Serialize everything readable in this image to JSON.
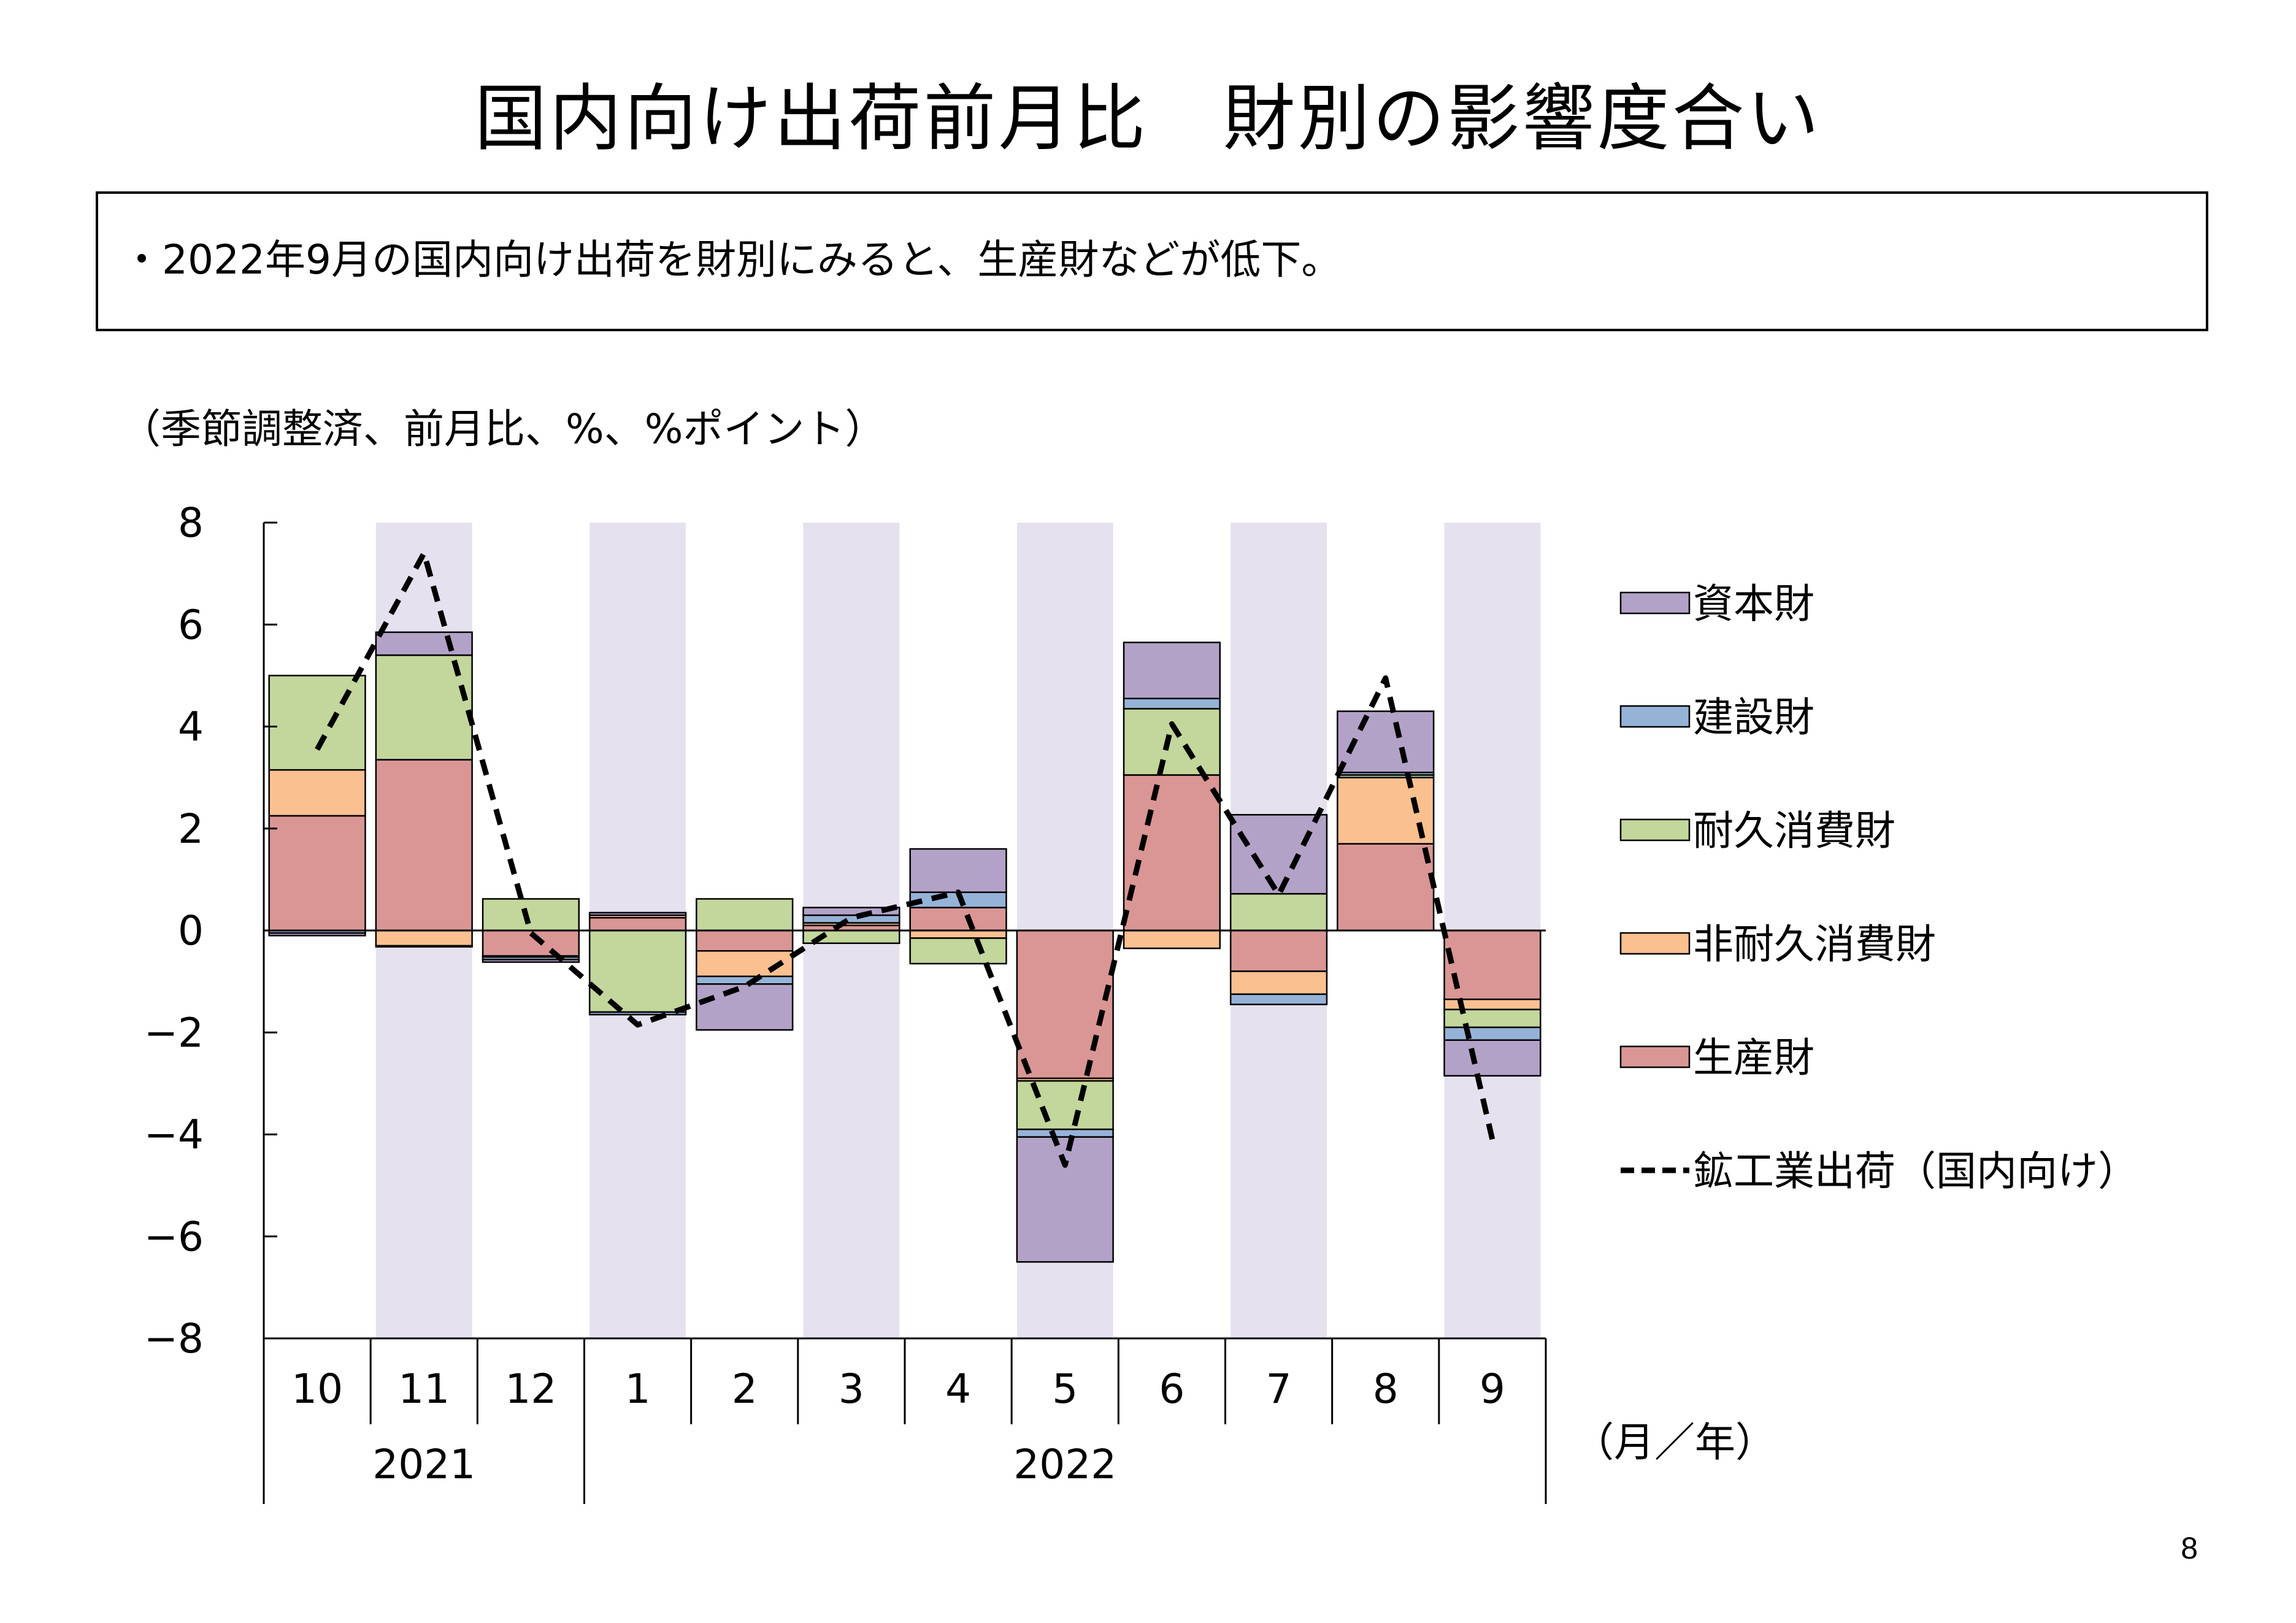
{
  "title": "国内向け出荷前月比　財別の影響度合い",
  "summary": "・2022年9月の国内向け出荷を財別にみると、生産財などが低下。",
  "unit_note": "（季節調整済、前月比、%、%ポイント）",
  "page_number": "8",
  "chart_data": {
    "type": "bar",
    "stacked": true,
    "categories": [
      "10",
      "11",
      "12",
      "1",
      "2",
      "3",
      "4",
      "5",
      "6",
      "7",
      "8",
      "9"
    ],
    "year_groups": [
      {
        "label": "2021",
        "start": 0,
        "end": 2
      },
      {
        "label": "2022",
        "start": 3,
        "end": 11
      }
    ],
    "xlabel": "（月／年）",
    "ylim": [
      -8,
      8
    ],
    "yticks": [
      "8",
      "6",
      "4",
      "2",
      "0",
      "−2",
      "−4",
      "−6",
      "−8"
    ],
    "ytick_values": [
      8,
      6,
      4,
      2,
      0,
      -2,
      -4,
      -6,
      -8
    ],
    "shaded_categories": [
      1,
      3,
      5,
      7,
      9,
      11
    ],
    "shade_color": "#e6e1ee",
    "series": [
      {
        "name": "生産財",
        "color": "#d99694",
        "values": [
          2.25,
          3.35,
          -0.5,
          0.25,
          -0.4,
          0.1,
          0.45,
          -2.9,
          3.05,
          -0.8,
          1.7,
          -1.35
        ]
      },
      {
        "name": "非耐久消費財",
        "color": "#fac090",
        "values": [
          0.9,
          -0.3,
          -0.02,
          0.05,
          -0.5,
          0.05,
          -0.15,
          -0.05,
          -0.35,
          -0.45,
          1.3,
          -0.2
        ]
      },
      {
        "name": "耐久消費財",
        "color": "#c3d69b",
        "values": [
          1.85,
          2.05,
          0.62,
          -1.6,
          0.62,
          -0.25,
          -0.5,
          -0.95,
          1.3,
          0.72,
          0.05,
          -0.35
        ]
      },
      {
        "name": "建設財",
        "color": "#95b3d7",
        "values": [
          -0.05,
          -0.02,
          -0.05,
          -0.05,
          -0.15,
          0.15,
          0.3,
          -0.15,
          0.2,
          -0.2,
          0.05,
          -0.25
        ]
      },
      {
        "name": "資本財",
        "color": "#b3a2c7",
        "values": [
          -0.05,
          0.45,
          -0.05,
          0.05,
          -0.9,
          0.15,
          0.85,
          -2.45,
          1.1,
          1.55,
          1.2,
          -0.7
        ]
      }
    ],
    "line_series": {
      "name": "鉱工業出荷（国内向け）",
      "color": "#000000",
      "values": [
        3.55,
        7.4,
        -0.05,
        -1.85,
        -1.1,
        0.25,
        0.75,
        -4.6,
        4.05,
        0.7,
        4.95,
        -4.1
      ]
    },
    "legend_order": [
      "資本財",
      "建設財",
      "耐久消費財",
      "非耐久消費財",
      "生産財",
      "鉱工業出荷（国内向け）"
    ],
    "legend_position": "right"
  }
}
